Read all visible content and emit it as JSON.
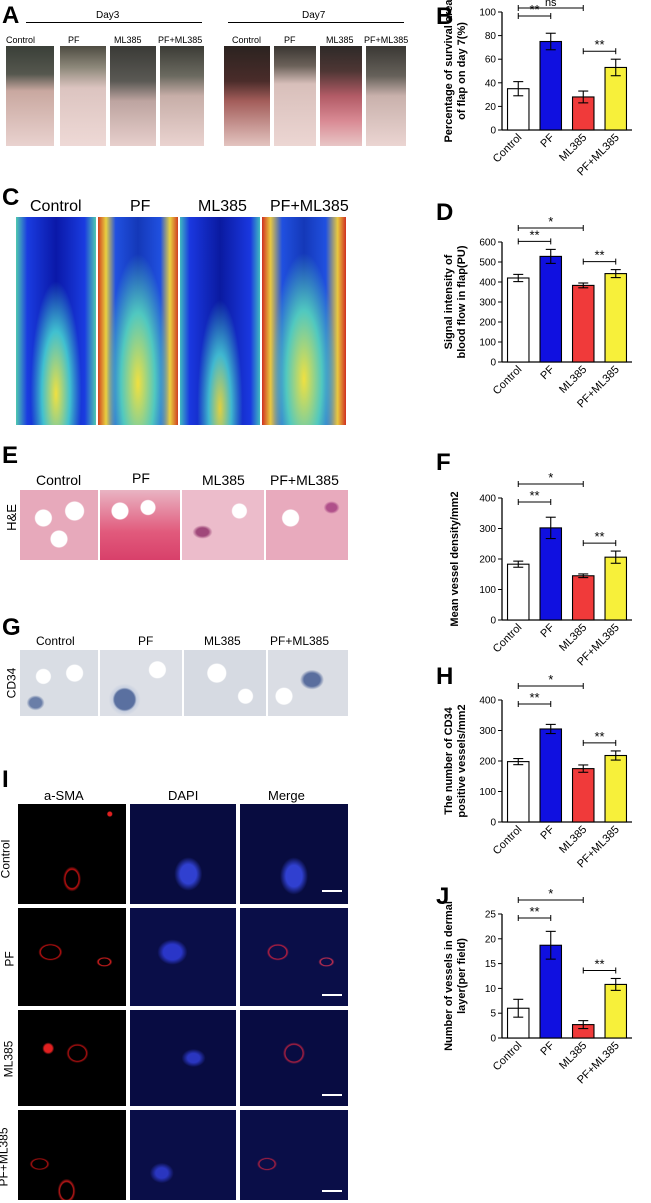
{
  "panels": {
    "A": {
      "letter": "A",
      "day3": "Day3",
      "day7": "Day7",
      "groups": [
        "Control",
        "PF",
        "ML385",
        "PF+ML385"
      ]
    },
    "C": {
      "letter": "C",
      "groups": [
        "Control",
        "PF",
        "ML385",
        "PF+ML385"
      ]
    },
    "E": {
      "letter": "E",
      "row_label": "H&E",
      "groups": [
        "Control",
        "PF",
        "ML385",
        "PF+ML385"
      ]
    },
    "G": {
      "letter": "G",
      "row_label": "CD34",
      "groups": [
        "Control",
        "PF",
        "ML385",
        "PF+ML385"
      ]
    },
    "I": {
      "letter": "I",
      "columns": [
        "a-SMA",
        "DAPI",
        "Merge"
      ],
      "rows": [
        "Control",
        "PF",
        "ML385",
        "PF+ML385"
      ]
    }
  },
  "colors": {
    "Control": "#ffffff",
    "PF": "#1010e0",
    "ML385": "#f03a3a",
    "PF+ML385": "#f7f03a"
  },
  "chart_data": [
    {
      "letter": "B",
      "type": "bar",
      "categories": [
        "Control",
        "PF",
        "ML385",
        "PF+ML385"
      ],
      "values": [
        35,
        75,
        28,
        53
      ],
      "errors": [
        6,
        7,
        5,
        7
      ],
      "ylabel": [
        "Percentage of survival area",
        "of flap on day 7(%)"
      ],
      "ylim": [
        0,
        100
      ],
      "yticks": [
        0,
        20,
        40,
        60,
        80,
        100
      ],
      "sig": [
        {
          "from": 0,
          "to": 1,
          "label": "**",
          "tier": 1
        },
        {
          "from": 0,
          "to": 2,
          "label": "ns",
          "tier": 2
        },
        {
          "from": 2,
          "to": 3,
          "label": "**",
          "tier": 1
        }
      ]
    },
    {
      "letter": "D",
      "type": "bar",
      "categories": [
        "Control",
        "PF",
        "ML385",
        "PF+ML385"
      ],
      "values": [
        420,
        528,
        383,
        442
      ],
      "errors": [
        18,
        35,
        12,
        20
      ],
      "ylabel": [
        "Signal intensity of",
        "blood flow in flap(PU)"
      ],
      "ylim": [
        0,
        600
      ],
      "yticks": [
        0,
        100,
        200,
        300,
        400,
        500,
        600
      ],
      "sig": [
        {
          "from": 0,
          "to": 1,
          "label": "**",
          "tier": 1
        },
        {
          "from": 0,
          "to": 2,
          "label": "*",
          "tier": 2
        },
        {
          "from": 2,
          "to": 3,
          "label": "**",
          "tier": 1
        }
      ]
    },
    {
      "letter": "F",
      "type": "bar",
      "categories": [
        "Control",
        "PF",
        "ML385",
        "PF+ML385"
      ],
      "values": [
        183,
        302,
        145,
        206
      ],
      "errors": [
        10,
        35,
        6,
        20
      ],
      "ylabel": [
        "Mean vessel density/mm2"
      ],
      "ylim": [
        0,
        400
      ],
      "yticks": [
        0,
        100,
        200,
        300,
        400
      ],
      "sig": [
        {
          "from": 0,
          "to": 1,
          "label": "**",
          "tier": 1
        },
        {
          "from": 0,
          "to": 2,
          "label": "*",
          "tier": 2
        },
        {
          "from": 2,
          "to": 3,
          "label": "**",
          "tier": 1
        }
      ]
    },
    {
      "letter": "H",
      "type": "bar",
      "categories": [
        "Control",
        "PF",
        "ML385",
        "PF+ML385"
      ],
      "values": [
        198,
        305,
        175,
        218
      ],
      "errors": [
        10,
        15,
        12,
        15
      ],
      "ylabel": [
        "The number of CD34",
        "positive vessels/mm2"
      ],
      "ylim": [
        0,
        400
      ],
      "yticks": [
        0,
        100,
        200,
        300,
        400
      ],
      "sig": [
        {
          "from": 0,
          "to": 1,
          "label": "**",
          "tier": 1
        },
        {
          "from": 0,
          "to": 2,
          "label": "*",
          "tier": 2
        },
        {
          "from": 2,
          "to": 3,
          "label": "**",
          "tier": 1
        }
      ]
    },
    {
      "letter": "J",
      "type": "bar",
      "categories": [
        "Control",
        "PF",
        "ML385",
        "PF+ML385"
      ],
      "values": [
        6,
        18.7,
        2.7,
        10.8
      ],
      "errors": [
        1.8,
        2.8,
        0.8,
        1.2
      ],
      "ylabel": [
        "Number of vessels in dermal",
        "layer(per field)"
      ],
      "ylim": [
        0,
        25
      ],
      "yticks": [
        0,
        5,
        10,
        15,
        20,
        25
      ],
      "sig": [
        {
          "from": 0,
          "to": 1,
          "label": "**",
          "tier": 1
        },
        {
          "from": 0,
          "to": 2,
          "label": "*",
          "tier": 2
        },
        {
          "from": 2,
          "to": 3,
          "label": "**",
          "tier": 1
        }
      ]
    }
  ]
}
